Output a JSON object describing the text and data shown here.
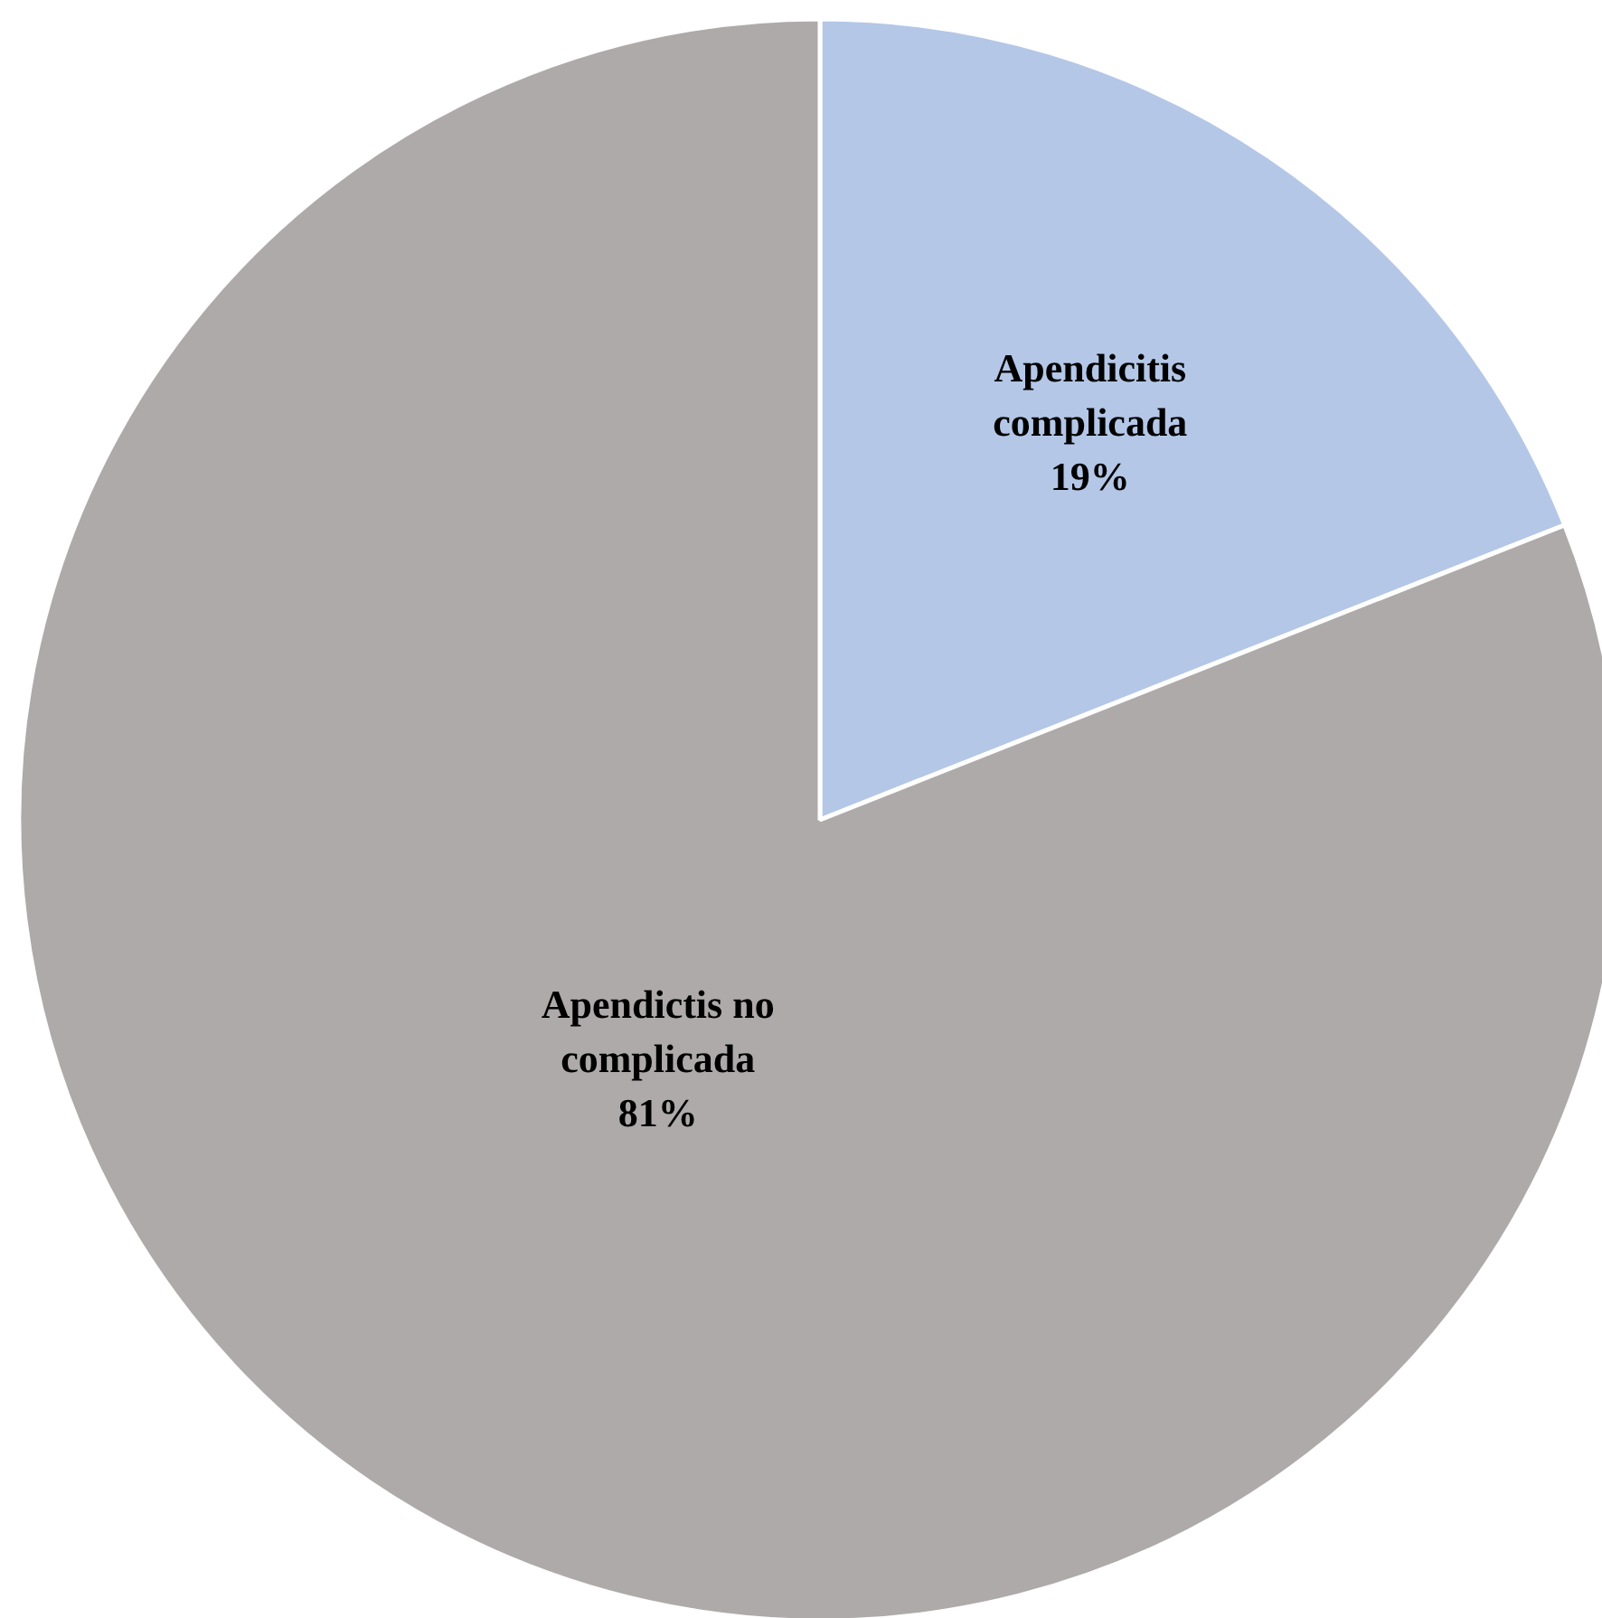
{
  "chart_data": {
    "type": "pie",
    "categories": [
      "Apendicitis complicada",
      "Apendictis no complicada"
    ],
    "values": [
      19,
      81
    ],
    "colors": [
      "#b4c7e7",
      "#aeaaaa"
    ],
    "value_labels": [
      "19%",
      "81%"
    ]
  }
}
